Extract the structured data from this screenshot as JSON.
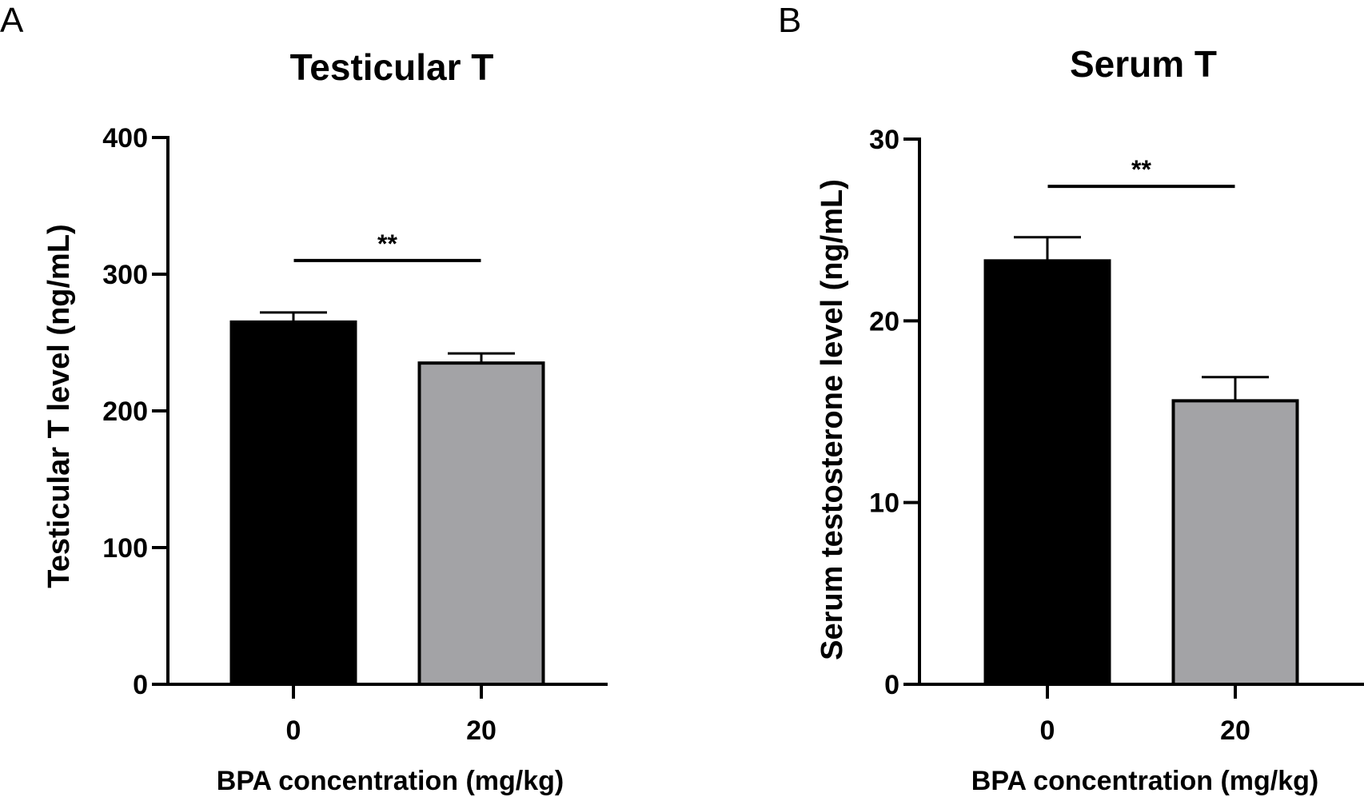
{
  "chart_data": [
    {
      "panel": "A",
      "type": "bar",
      "title": "Testicular T",
      "xlabel": "BPA concentration (mg/kg)",
      "ylabel": "Testicular T level (ng/mL)",
      "categories": [
        "0",
        "20"
      ],
      "values": [
        265,
        235
      ],
      "errors": [
        7,
        7
      ],
      "bar_colors": [
        "#000000",
        "#a3a3a6"
      ],
      "ylim": [
        0,
        400
      ],
      "yticks": [
        0,
        100,
        200,
        300,
        400
      ],
      "ytick_labels": [
        "0",
        "100",
        "200",
        "300",
        "400"
      ],
      "grid": false,
      "significance": {
        "from": "0",
        "to": "20",
        "label": "**",
        "level": 310
      }
    },
    {
      "panel": "B",
      "type": "bar",
      "title": "Serum T",
      "xlabel": "BPA concentration (mg/kg)",
      "ylabel": "Serum testosterone level (ng/mL)",
      "categories": [
        "0",
        "20"
      ],
      "values": [
        23.3,
        15.6
      ],
      "errors": [
        1.3,
        1.3
      ],
      "bar_colors": [
        "#000000",
        "#a3a3a6"
      ],
      "ylim": [
        0,
        30
      ],
      "yticks": [
        0,
        10,
        20,
        30
      ],
      "ytick_labels": [
        "0",
        "10",
        "20",
        "30"
      ],
      "grid": false,
      "significance": {
        "from": "0",
        "to": "20",
        "label": "**",
        "level": 27.4
      }
    }
  ]
}
